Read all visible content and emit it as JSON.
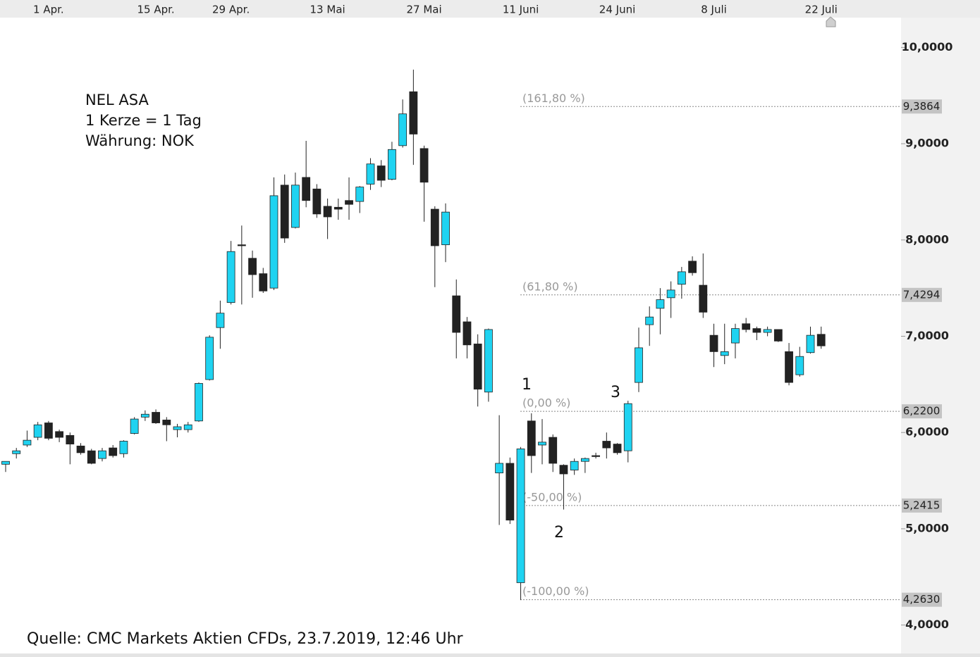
{
  "chart_data": {
    "type": "candlestick",
    "text_lines": [
      "NEL ASA",
      "1 Kerze = 1 Tag",
      "Währung: NOK"
    ],
    "source": "Quelle: CMC Markets Aktien CFDs, 23.7.2019, 12:46 Uhr",
    "categories": [
      null,
      null,
      null,
      null,
      "1 Apr.",
      null,
      null,
      null,
      null,
      null,
      null,
      null,
      null,
      null,
      "15 Apr.",
      null,
      null,
      null,
      null,
      null,
      null,
      "29 Apr.",
      null,
      null,
      null,
      null,
      null,
      null,
      null,
      null,
      "13 Mai",
      null,
      null,
      null,
      null,
      null,
      null,
      null,
      null,
      "27 Mai",
      null,
      null,
      null,
      null,
      null,
      null,
      null,
      null,
      "11 Juni",
      null,
      null,
      null,
      null,
      null,
      null,
      null,
      null,
      "24 Juni",
      null,
      null,
      null,
      null,
      null,
      null,
      null,
      null,
      "8 Juli",
      null,
      null,
      null,
      null,
      null,
      null,
      null,
      null,
      null,
      "22 Juli"
    ],
    "open": [
      5.67,
      5.78,
      5.87,
      5.95,
      6.1,
      6.01,
      5.97,
      5.86,
      5.81,
      5.73,
      5.84,
      5.78,
      5.99,
      6.16,
      6.21,
      6.13,
      6.03,
      6.03,
      6.12,
      6.55,
      7.09,
      7.35,
      7.95,
      7.81,
      7.65,
      7.5,
      8.57,
      8.13,
      8.65,
      8.53,
      8.35,
      8.34,
      8.41,
      8.4,
      8.58,
      8.77,
      8.63,
      8.98,
      9.54,
      8.95,
      8.32,
      7.95,
      7.42,
      7.15,
      6.92,
      6.42,
      5.58,
      5.68,
      4.44,
      6.12,
      5.87,
      5.95,
      5.66,
      5.61,
      5.7,
      5.76,
      5.91,
      5.88,
      5.81,
      6.52,
      7.12,
      7.29,
      7.4,
      7.54,
      7.78,
      7.53,
      7.01,
      6.8,
      6.93,
      7.13,
      7.08,
      7.04,
      7.07,
      6.84,
      6.6,
      6.83,
      7.02
    ],
    "high": [
      5.7,
      5.84,
      6.02,
      6.11,
      6.12,
      6.03,
      6.0,
      5.89,
      5.83,
      5.84,
      5.87,
      5.92,
      6.16,
      6.23,
      6.24,
      6.16,
      6.09,
      6.11,
      6.52,
      7.01,
      7.37,
      7.99,
      8.15,
      7.89,
      7.71,
      8.65,
      8.68,
      8.7,
      9.03,
      8.58,
      8.43,
      8.43,
      8.65,
      8.56,
      8.85,
      8.83,
      9.02,
      9.46,
      9.77,
      8.98,
      8.35,
      8.38,
      7.59,
      7.2,
      7.02,
      7.08,
      6.18,
      5.74,
      5.85,
      6.2,
      6.14,
      5.98,
      5.67,
      5.73,
      5.74,
      5.79,
      6.0,
      5.89,
      6.33,
      7.09,
      7.31,
      7.5,
      7.57,
      7.72,
      7.83,
      7.86,
      7.13,
      7.13,
      7.13,
      7.19,
      7.1,
      7.1,
      7.07,
      6.93,
      6.89,
      7.1,
      7.1
    ],
    "low": [
      5.59,
      5.73,
      5.85,
      5.92,
      5.92,
      5.9,
      5.67,
      5.77,
      5.67,
      5.7,
      5.74,
      5.74,
      5.98,
      6.12,
      6.09,
      5.91,
      5.95,
      6.0,
      6.11,
      6.54,
      6.87,
      7.33,
      7.33,
      7.4,
      7.45,
      7.48,
      7.97,
      8.12,
      8.34,
      8.23,
      8.01,
      8.21,
      8.21,
      8.28,
      8.52,
      8.55,
      8.62,
      8.96,
      8.78,
      8.19,
      7.51,
      7.77,
      6.77,
      6.77,
      6.27,
      6.32,
      5.04,
      5.05,
      4.26,
      5.58,
      5.67,
      5.59,
      5.2,
      5.56,
      5.58,
      5.73,
      5.73,
      5.77,
      5.69,
      6.42,
      6.9,
      7.02,
      7.19,
      7.39,
      7.63,
      7.19,
      6.68,
      6.71,
      6.77,
      7.04,
      6.96,
      7.0,
      6.94,
      6.49,
      6.58,
      6.82,
      6.87
    ],
    "close": [
      5.7,
      5.81,
      5.92,
      6.08,
      5.94,
      5.95,
      5.88,
      5.79,
      5.68,
      5.81,
      5.76,
      5.91,
      6.14,
      6.19,
      6.1,
      6.08,
      6.06,
      6.08,
      6.51,
      6.99,
      7.24,
      7.88,
      7.94,
      7.64,
      7.47,
      8.46,
      8.02,
      8.57,
      8.41,
      8.27,
      8.24,
      8.32,
      8.37,
      8.55,
      8.79,
      8.62,
      8.94,
      9.31,
      9.1,
      8.6,
      7.94,
      8.29,
      7.04,
      6.91,
      6.45,
      7.07,
      5.68,
      5.09,
      5.83,
      5.76,
      5.9,
      5.68,
      5.57,
      5.7,
      5.73,
      5.75,
      5.84,
      5.79,
      6.3,
      6.88,
      7.2,
      7.38,
      7.48,
      7.67,
      7.66,
      7.25,
      6.84,
      6.84,
      7.08,
      7.07,
      7.04,
      7.07,
      6.95,
      6.52,
      6.79,
      7.01,
      6.9
    ],
    "up_color": "#1fd3f1",
    "down_color": "#222222",
    "ylim": [
      3.69,
      10.31
    ],
    "yticks": [
      {
        "value": 10,
        "label": "10,0000"
      },
      {
        "value": 9,
        "label": "9,0000"
      },
      {
        "value": 8,
        "label": "8,0000"
      },
      {
        "value": 7,
        "label": "7,0000"
      },
      {
        "value": 6,
        "label": "6,0000"
      },
      {
        "value": 5,
        "label": "5,0000"
      },
      {
        "value": 4,
        "label": "4,0000"
      }
    ],
    "levels": [
      {
        "label": "(161,80 %)",
        "value": 9.3864,
        "value_label": "9,3864"
      },
      {
        "label": "(61,80 %)",
        "value": 7.4294,
        "value_label": "7,4294"
      },
      {
        "label": "(0,00 %)",
        "value": 6.22,
        "value_label": "6,2200"
      },
      {
        "label": "(-50,00 %)",
        "value": 5.2415,
        "value_label": "5,2415"
      },
      {
        "label": "(-100,00 %)",
        "value": 4.263,
        "value_label": "4,2630"
      }
    ],
    "wave_labels": [
      "1",
      "2",
      "3"
    ]
  }
}
